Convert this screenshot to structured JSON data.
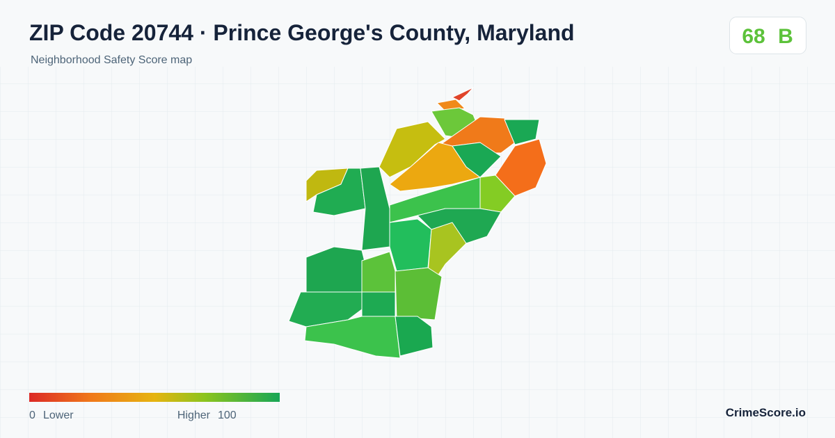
{
  "header": {
    "title": "ZIP Code 20744 · Prince George's County, Maryland",
    "subtitle": "Neighborhood Safety Score map"
  },
  "score": {
    "value": 68,
    "grade": "B"
  },
  "legend": {
    "min": 0,
    "min_label": "Lower",
    "max_label": "Higher",
    "max": 100
  },
  "brand": "CrimeScore.io"
}
